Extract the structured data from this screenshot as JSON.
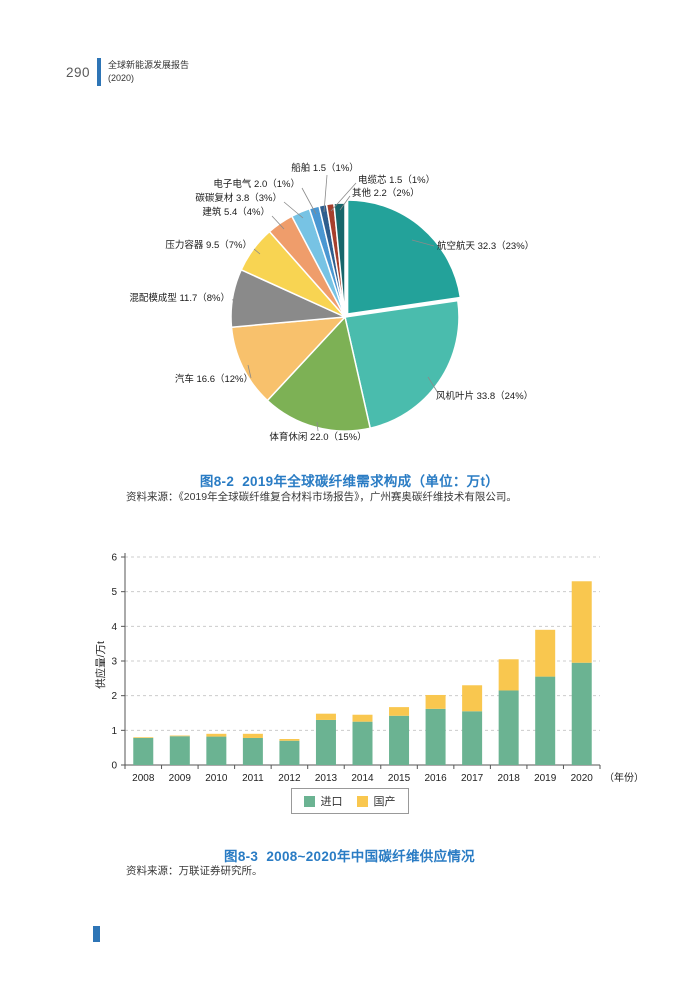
{
  "page": {
    "number": "290",
    "header_title": "全球新能源发展报告",
    "header_subtitle": "(2020)"
  },
  "figure_pie": {
    "caption": "图8-2  2019年全球碳纤维需求构成（单位：万t）",
    "source": "资料来源：《2019年全球碳纤维复合材料市场报告》，广州赛奥碳纤维技术有限公司。"
  },
  "figure_bar": {
    "caption": "图8-3  2008~2020年中国碳纤维供应情况",
    "source": "资料来源：万联证券研究所。",
    "ylabel": "供应量/万t",
    "x_axis_unit": "（年份）",
    "legend": [
      "进口",
      "国产"
    ]
  },
  "colors": {
    "accent_blue": "#2E75B6",
    "caption_blue": "#2A7CC4"
  },
  "chart_data": [
    {
      "type": "pie",
      "title": "2019年全球碳纤维需求构成（单位：万t）",
      "slices": [
        {
          "label": "航空航天",
          "value": "32.3",
          "pct": "23%",
          "color": "#23A29A"
        },
        {
          "label": "风机叶片",
          "value": "33.8",
          "pct": "24%",
          "color": "#4ABCAD"
        },
        {
          "label": "体育休闲",
          "value": "22.0",
          "pct": "15%",
          "color": "#7DB155"
        },
        {
          "label": "汽车",
          "value": "16.6",
          "pct": "12%",
          "color": "#F8C16C"
        },
        {
          "label": "混配模成型",
          "value": "11.7",
          "pct": "8%",
          "color": "#8A8A8A"
        },
        {
          "label": "压力容器",
          "value": "9.5",
          "pct": "7%",
          "color": "#F8D452"
        },
        {
          "label": "建筑",
          "value": "5.4",
          "pct": "4%",
          "color": "#EF9D6B"
        },
        {
          "label": "碳碳复材",
          "value": "3.8",
          "pct": "3%",
          "color": "#77C3E4"
        },
        {
          "label": "电子电气",
          "value": "2.0",
          "pct": "1%",
          "color": "#4A97D2"
        },
        {
          "label": "船舶",
          "value": "1.5",
          "pct": "1%",
          "color": "#2E5E8E"
        },
        {
          "label": "电缆芯",
          "value": "1.5",
          "pct": "1%",
          "color": "#A63F2C"
        },
        {
          "label": "其他",
          "value": "2.2",
          "pct": "2%",
          "color": "#17666B"
        }
      ]
    },
    {
      "type": "bar",
      "stacked": true,
      "title": "2008~2020年中国碳纤维供应情况",
      "categories": [
        "2008",
        "2009",
        "2010",
        "2011",
        "2012",
        "2013",
        "2014",
        "2015",
        "2016",
        "2017",
        "2018",
        "2019",
        "2020"
      ],
      "series": [
        {
          "name": "进口",
          "color": "#6BB392",
          "values": [
            0.78,
            0.83,
            0.82,
            0.78,
            0.7,
            1.3,
            1.25,
            1.42,
            1.62,
            1.55,
            2.15,
            2.55,
            2.95
          ]
        },
        {
          "name": "国产",
          "color": "#F9C74F",
          "values": [
            0.02,
            0.02,
            0.08,
            0.12,
            0.05,
            0.18,
            0.2,
            0.25,
            0.4,
            0.75,
            0.9,
            1.35,
            2.35
          ]
        }
      ],
      "xlabel": "年份",
      "ylabel": "供应量/万t",
      "ylim": [
        0,
        6
      ],
      "grid": true,
      "legend_position": "bottom"
    }
  ]
}
